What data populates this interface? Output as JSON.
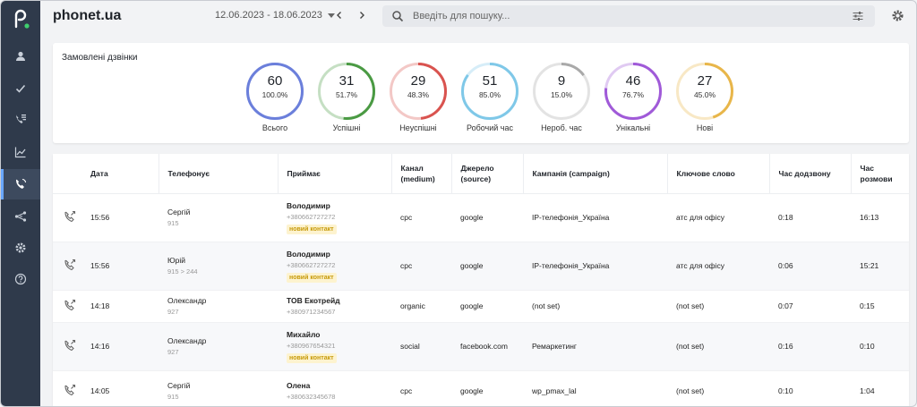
{
  "app": {
    "brand": "phonet.ua",
    "date_range": "12.06.2023 - 18.06.2023",
    "search_placeholder": "Введіть для пошуку...",
    "accent": "#6aa7ff",
    "sidebar_icons": [
      "user-icon",
      "check-icon",
      "call-list-icon",
      "chart-icon",
      "phone-call-icon",
      "flow-icon",
      "gear-icon",
      "help-icon"
    ]
  },
  "stats": {
    "title": "Замовлені дзвінки",
    "items": [
      {
        "value": "60",
        "percent": "100.0%",
        "label": "Всього",
        "fraction": 1.0,
        "color": "#6b7fdb"
      },
      {
        "value": "31",
        "percent": "51.7%",
        "label": "Успішні",
        "fraction": 0.517,
        "color": "#4a9a43"
      },
      {
        "value": "29",
        "percent": "48.3%",
        "label": "Неуспішні",
        "fraction": 0.483,
        "color": "#d9534f"
      },
      {
        "value": "51",
        "percent": "85.0%",
        "label": "Робочий час",
        "fraction": 0.85,
        "color": "#7fc8e8"
      },
      {
        "value": "9",
        "percent": "15.0%",
        "label": "Нероб. час",
        "fraction": 0.15,
        "color": "#a9a9a9"
      },
      {
        "value": "46",
        "percent": "76.7%",
        "label": "Унікальні",
        "fraction": 0.767,
        "color": "#a05ad8"
      },
      {
        "value": "27",
        "percent": "45.0%",
        "label": "Нові",
        "fraction": 0.45,
        "color": "#e8b64a"
      }
    ]
  },
  "table": {
    "headers": {
      "date": "Дата",
      "caller": "Телефонує",
      "receiver": "Приймає",
      "medium": "Канал (medium)",
      "source": "Джерело (source)",
      "campaign": "Кампанія (campaign)",
      "keyword": "Ключове слово",
      "wait": "Час додзвону",
      "talk": "Час розмови"
    },
    "rows": [
      {
        "time": "15:56",
        "caller": "Сергій",
        "caller_sub": "915",
        "receiver": "Володимир",
        "receiver_sub": "+380662727272",
        "badge": "новий контакт",
        "medium": "cpc",
        "source": "google",
        "campaign": "IP-телефонія_Україна",
        "keyword": "атс для офісу",
        "wait": "0:18",
        "talk": "16:13"
      },
      {
        "time": "15:56",
        "caller": "Юрій",
        "caller_sub": "915 > 244",
        "receiver": "Володимир",
        "receiver_sub": "+380662727272",
        "badge": "новий контакт",
        "medium": "cpc",
        "source": "google",
        "campaign": "IP-телефонія_Україна",
        "keyword": "атс для офісу",
        "wait": "0:06",
        "talk": "15:21"
      },
      {
        "time": "14:18",
        "caller": "Олександр",
        "caller_sub": "927",
        "receiver": "ТОВ Екотрейд",
        "receiver_sub": "+380971234567",
        "badge": "",
        "medium": "organic",
        "source": "google",
        "campaign": "(not set)",
        "keyword": "(not set)",
        "wait": "0:07",
        "talk": "0:15"
      },
      {
        "time": "14:16",
        "caller": "Олександр",
        "caller_sub": "927",
        "receiver": "Михайло",
        "receiver_sub": "+380967654321",
        "badge": "новий контакт",
        "medium": "social",
        "source": "facebook.com",
        "campaign": "Ремаркетинг",
        "keyword": "(not set)",
        "wait": "0:16",
        "talk": "0:10"
      },
      {
        "time": "14:05",
        "caller": "Сергій",
        "caller_sub": "915",
        "receiver": "Олена",
        "receiver_sub": "+380632345678",
        "badge": "",
        "medium": "cpc",
        "source": "google",
        "campaign": "wp_pmax_lal",
        "keyword": "(not set)",
        "wait": "0:10",
        "talk": "1:04"
      }
    ]
  }
}
